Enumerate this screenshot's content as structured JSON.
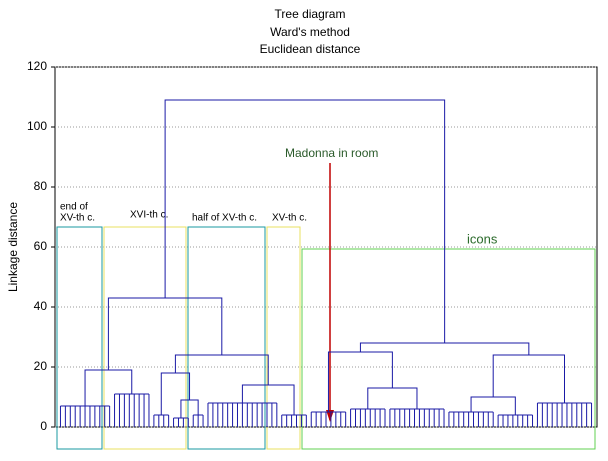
{
  "chart_data": {
    "type": "dendrogram",
    "title": [
      "Tree diagram",
      "Ward's method",
      "Euclidean distance"
    ],
    "ylabel": "Linkage distance",
    "ylim": [
      0,
      120
    ],
    "yticks": [
      0,
      20,
      40,
      60,
      80,
      100,
      120
    ],
    "grid": true,
    "color": "#1a1aa6",
    "annotations": [
      "end of",
      "XV-th c.",
      "XVI-th c.",
      "half of  XV-th c.",
      "XV-th c.",
      "icons",
      "Madonna in room"
    ],
    "tree": {
      "height": 109,
      "children": [
        {
          "height": 43,
          "children": [
            {
              "height": 19,
              "children": [
                {
                  "height": 7,
                  "size": 11
                },
                {
                  "height": 11,
                  "size": 8
                }
              ]
            },
            {
              "height": 24,
              "children": [
                {
                  "height": 18,
                  "children": [
                    {
                      "height": 4,
                      "size": 4
                    },
                    {
                      "height": 9,
                      "children": [
                        {
                          "height": 3,
                          "size": 4
                        },
                        {
                          "height": 4,
                          "size": 3
                        }
                      ]
                    }
                  ]
                },
                {
                  "height": 14,
                  "children": [
                    {
                      "height": 8,
                      "size": 15
                    },
                    {
                      "height": 4,
                      "size": 6
                    }
                  ]
                }
              ]
            }
          ]
        },
        {
          "height": 28,
          "children": [
            {
              "height": 25,
              "children": [
                {
                  "height": 5,
                  "size": 8
                },
                {
                  "height": 13,
                  "children": [
                    {
                      "height": 6,
                      "size": 8
                    },
                    {
                      "height": 6,
                      "size": 12
                    }
                  ]
                }
              ]
            },
            {
              "height": 24,
              "children": [
                {
                  "height": 10,
                  "children": [
                    {
                      "height": 5,
                      "size": 10
                    },
                    {
                      "height": 4,
                      "size": 8
                    }
                  ]
                },
                {
                  "height": 8,
                  "size": 12
                }
              ]
            }
          ]
        }
      ]
    }
  }
}
